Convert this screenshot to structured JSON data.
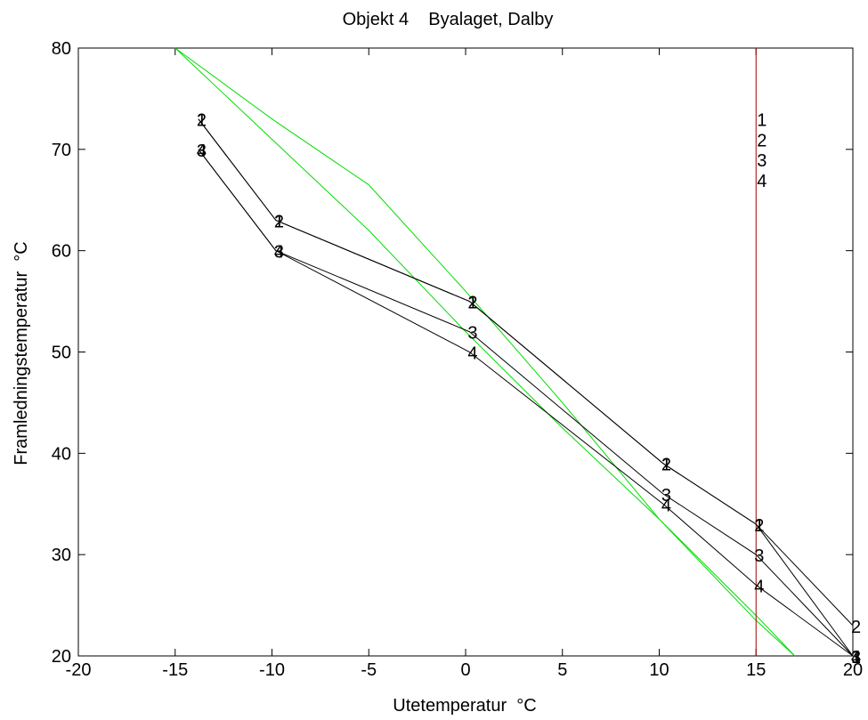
{
  "chart_data": {
    "type": "line",
    "title": "Objekt 4    Byalaget, Dalby",
    "xlabel": "Utetemperatur  °C",
    "ylabel": "Framledningstemperatur  °C",
    "xlim": [
      -20,
      20
    ],
    "ylim": [
      20,
      80
    ],
    "xticks": [
      -20,
      -15,
      -10,
      -5,
      0,
      5,
      10,
      15,
      20
    ],
    "yticks": [
      20,
      30,
      40,
      50,
      60,
      70,
      80
    ],
    "grid": false,
    "colors": {
      "curves": "#000000",
      "reference": "#00dd00",
      "marker": "#a00000"
    },
    "series": [
      {
        "name": "1",
        "x": [
          -13.8,
          -9.8,
          0.2,
          10.2,
          15,
          20
        ],
        "y": [
          73,
          63,
          55,
          39,
          33,
          20
        ]
      },
      {
        "name": "2",
        "x": [
          -13.8,
          -9.8,
          0.2,
          10.2,
          15,
          20
        ],
        "y": [
          73,
          63,
          55,
          39,
          33,
          23
        ]
      },
      {
        "name": "3",
        "x": [
          -13.8,
          -9.8,
          0.2,
          10.2,
          15,
          20
        ],
        "y": [
          70,
          60,
          52,
          36,
          30,
          20
        ]
      },
      {
        "name": "4",
        "x": [
          -13.8,
          -9.8,
          0.2,
          10.2,
          15,
          20
        ],
        "y": [
          70,
          60,
          50,
          35,
          27,
          20
        ]
      }
    ],
    "reference_lines": [
      {
        "x": [
          -15,
          -10,
          -5,
          0,
          5,
          10,
          15,
          17
        ],
        "y": [
          80,
          73,
          66.5,
          56,
          45,
          33.5,
          23.5,
          20
        ]
      },
      {
        "x": [
          -15,
          -10,
          -5,
          0,
          5,
          10,
          15,
          17
        ],
        "y": [
          80,
          71,
          62,
          52,
          42.5,
          33.5,
          24,
          20
        ]
      }
    ],
    "vertical_marker": {
      "x": 15,
      "labels": [
        "1",
        "2",
        "3",
        "4"
      ],
      "label_y": [
        73,
        71,
        69,
        67
      ]
    }
  }
}
